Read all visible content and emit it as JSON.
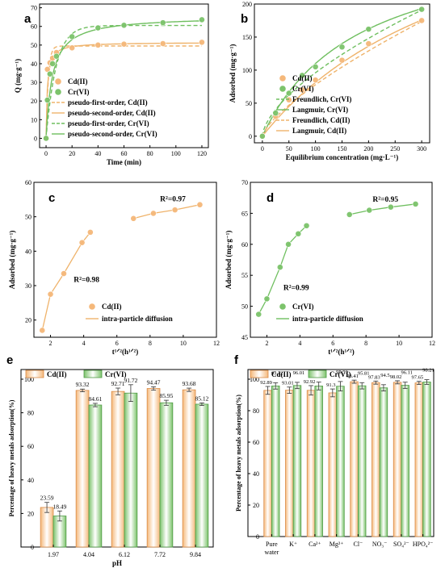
{
  "colors": {
    "cd": "#f5b87a",
    "cr": "#7cc36b",
    "cdLine": "#efb36b",
    "crLine": "#6fbf5f"
  },
  "chart_data": [
    {
      "id": "a",
      "letter": "a",
      "type": "scatter",
      "xlabel": "Time (min)",
      "ylabel": "Q (mg·g⁻¹)",
      "xlim": [
        -5,
        125
      ],
      "ylim": [
        -5,
        72
      ],
      "xticks": [
        0,
        20,
        40,
        60,
        80,
        100,
        120
      ],
      "yticks": [
        0,
        10,
        20,
        30,
        40,
        50,
        60,
        70
      ],
      "series": [
        {
          "name": "Cd(II)",
          "color": "#f5b87a",
          "x": [
            0,
            1,
            3,
            5,
            8,
            20,
            40,
            60,
            90,
            120
          ],
          "y": [
            0,
            37,
            40.5,
            43,
            46,
            48.5,
            50,
            50.5,
            50.8,
            51.5
          ]
        },
        {
          "name": "Cr(VI)",
          "color": "#7cc36b",
          "x": [
            0,
            1,
            3,
            5,
            8,
            20,
            40,
            60,
            90,
            120
          ],
          "y": [
            0,
            20.5,
            34.5,
            40,
            44,
            54.5,
            59.2,
            60.6,
            62,
            63.6
          ]
        }
      ],
      "fits": [
        {
          "name": "pseudo-first-order, Cd(II)",
          "model": "pfo",
          "qe": 49.5,
          "k": 0.6,
          "dash": true,
          "color": "#efb36b"
        },
        {
          "name": "pseudo-second-order, Cd(II)",
          "model": "pso",
          "qe": 51.5,
          "k": 0.02,
          "dash": false,
          "color": "#efb36b"
        },
        {
          "name": "pseudo-first-order, Cr(VI)",
          "model": "pfo",
          "qe": 60.5,
          "k": 0.13,
          "dash": true,
          "color": "#6fbf5f"
        },
        {
          "name": "pseudo-second-order, Cr(VI)",
          "model": "pso",
          "qe": 65.5,
          "k": 0.0032,
          "dash": false,
          "color": "#6fbf5f"
        }
      ]
    },
    {
      "id": "b",
      "letter": "b",
      "type": "scatter",
      "xlabel": "Equilibrium concentration (mg·L⁻¹)",
      "ylabel": "Adsorbed (mg·g⁻¹)",
      "xlim": [
        -15,
        315
      ],
      "ylim": [
        -10,
        200
      ],
      "xticks": [
        0,
        50,
        100,
        150,
        200,
        250,
        300
      ],
      "yticks": [
        0,
        50,
        100,
        150,
        200
      ],
      "series": [
        {
          "name": "Cd(II)",
          "color": "#f5b87a",
          "x": [
            0,
            25,
            50,
            75,
            100,
            150,
            200,
            300
          ],
          "y": [
            0,
            30,
            55,
            70,
            85,
            115,
            140,
            175
          ]
        },
        {
          "name": "Cr(VI)",
          "color": "#7cc36b",
          "x": [
            0,
            25,
            50,
            75,
            100,
            150,
            200,
            300
          ],
          "y": [
            0,
            35,
            65,
            92,
            105,
            135,
            162,
            192
          ]
        }
      ],
      "fits": [
        {
          "name": "Freundlich, Cr(VI)",
          "model": "freundlich",
          "kf": 5.4,
          "n": 1.6,
          "dash": true,
          "color": "#6fbf5f"
        },
        {
          "name": "Langmuir, Cr(VI)",
          "model": "langmuir",
          "qm": 310,
          "kl": 0.0055,
          "dash": false,
          "color": "#6fbf5f"
        },
        {
          "name": "Freundlich, Cd(II)",
          "model": "freundlich",
          "kf": 2.7,
          "n": 1.37,
          "dash": true,
          "color": "#efb36b"
        },
        {
          "name": "Langmuir, Cd(II)",
          "model": "langmuir",
          "qm": 420,
          "kl": 0.0024,
          "dash": false,
          "color": "#efb36b"
        }
      ]
    },
    {
      "id": "c",
      "letter": "c",
      "type": "scatter",
      "xlabel": "t¹ᐟ²(h¹ᐟ²)",
      "ylabel": "Adsorbed (mg·g⁻¹)",
      "xlim": [
        1,
        12
      ],
      "ylim": [
        15,
        60
      ],
      "xticks": [
        2,
        4,
        6,
        8,
        10,
        12
      ],
      "yticks": [
        20,
        30,
        40,
        50,
        60
      ],
      "annotations": [
        {
          "text": "R²=0.98",
          "x": 3.4,
          "y": 31
        },
        {
          "text": "R²=0.97",
          "x": 8.6,
          "y": 54.5
        }
      ],
      "series": [
        {
          "name": "Cd(II)",
          "color": "#f5b87a",
          "x": [
            1.5,
            2.0,
            2.8,
            3.9,
            4.4,
            7.0,
            8.2,
            9.5,
            11.0
          ],
          "y": [
            17,
            27.5,
            33.5,
            42.5,
            45.5,
            49.5,
            51,
            52,
            53.5
          ]
        }
      ],
      "fits": [
        {
          "name": "intra-particle diffusion",
          "model": "segments",
          "color": "#efb36b",
          "dash": false,
          "segments": [
            {
              "x": [
                1.5,
                2.0,
                2.8,
                3.9,
                4.4
              ],
              "y": [
                17,
                27.5,
                33.5,
                42.5,
                45.5
              ]
            },
            {
              "x": [
                7.0,
                8.2,
                9.5,
                11.0
              ],
              "y": [
                49.5,
                51,
                52,
                53.5
              ]
            }
          ]
        }
      ]
    },
    {
      "id": "d",
      "letter": "d",
      "type": "scatter",
      "xlabel": "t¹ᐟ²(h¹ᐟ²)",
      "ylabel": "Adsorbed (mg·g⁻¹)",
      "xlim": [
        1,
        12
      ],
      "ylim": [
        45,
        70
      ],
      "xticks": [
        2,
        4,
        6,
        8,
        10,
        12
      ],
      "yticks": [
        45,
        50,
        55,
        60,
        65,
        70
      ],
      "annotations": [
        {
          "text": "R²=0.99",
          "x": 3.0,
          "y": 52.6
        },
        {
          "text": "R²=0.95",
          "x": 8.4,
          "y": 66.9
        }
      ],
      "series": [
        {
          "name": "Cr(VI)",
          "color": "#7cc36b",
          "x": [
            1.5,
            2.0,
            2.8,
            3.3,
            3.9,
            4.4,
            7.0,
            8.2,
            9.5,
            11.0
          ],
          "y": [
            48.7,
            51.2,
            56.3,
            60,
            61.7,
            63,
            64.8,
            65.5,
            66,
            66.5
          ]
        }
      ],
      "fits": [
        {
          "name": "intra-particle diffusion",
          "model": "segments",
          "color": "#6fbf5f",
          "dash": false,
          "segments": [
            {
              "x": [
                1.5,
                2.0,
                2.8,
                3.3,
                3.9,
                4.4
              ],
              "y": [
                48.7,
                51.2,
                56.3,
                60,
                61.7,
                63
              ]
            },
            {
              "x": [
                7.0,
                8.2,
                9.5,
                11.0
              ],
              "y": [
                64.8,
                65.5,
                66,
                66.5
              ]
            }
          ]
        }
      ]
    },
    {
      "id": "e",
      "letter": "e",
      "type": "bar",
      "xlabel": "pH",
      "ylabel": "Percentage of heavy metals adsorption(%)",
      "ylim": [
        0,
        100
      ],
      "yticks": [
        0,
        20,
        40,
        60,
        80,
        100
      ],
      "categories": [
        "1.97",
        "4.04",
        "6.12",
        "7.72",
        "9.84"
      ],
      "series": [
        {
          "name": "Cd(II)",
          "color": "#f5b87a",
          "values": [
            23.59,
            93.32,
            92.71,
            94.47,
            93.68
          ],
          "labels": [
            "23.59",
            "93.32",
            "92.71",
            "94.47",
            "93.68"
          ],
          "err": [
            3,
            0.8,
            2,
            1,
            1
          ]
        },
        {
          "name": "Cr(VI)",
          "color": "#7cc36b",
          "values": [
            18.49,
            84.61,
            91.72,
            85.95,
            85.12
          ],
          "labels": [
            "18.49",
            "84.61",
            "91.72",
            "85.95",
            "85.12"
          ],
          "err": [
            3,
            1,
            5,
            1.5,
            0.8
          ]
        }
      ]
    },
    {
      "id": "f",
      "letter": "f",
      "type": "bar",
      "xlabel": "",
      "ylabel": "Percentage of heavy metals adsorption(%)",
      "ylim": [
        0,
        100
      ],
      "yticks": [
        0,
        20,
        40,
        60,
        80,
        100
      ],
      "categories": [
        "Pure water",
        "K⁺",
        "Ca²⁺",
        "Mg²⁺",
        "Cl⁻",
        "NO₃⁻",
        "SO₄²⁻",
        "HPO₄²⁻"
      ],
      "series": [
        {
          "name": "Cd(II)",
          "color": "#f5b87a",
          "values": [
            92.89,
            93.01,
            92.92,
            91.3,
            98.41,
            97.83,
            98.02,
            97.65
          ],
          "labels": [
            "92.89",
            "93.01",
            "92.92",
            "91.3",
            "98.41",
            "97.83",
            "98.02",
            "97.65"
          ],
          "err": [
            2.5,
            2,
            3,
            2.5,
            1,
            1,
            1,
            1
          ]
        },
        {
          "name": "Cr(VI)",
          "color": "#7cc36b",
          "values": [
            95.72,
            96.01,
            95.69,
            95.53,
            95.81,
            94.5,
            96.11,
            98.21
          ],
          "labels": [
            "95.72",
            "96.01",
            "95.69",
            "95.53",
            "95.81",
            "94.5",
            "96.11",
            "98.21"
          ],
          "err": [
            2,
            2,
            2.5,
            3,
            2,
            2,
            2,
            1.5
          ]
        }
      ]
    }
  ]
}
